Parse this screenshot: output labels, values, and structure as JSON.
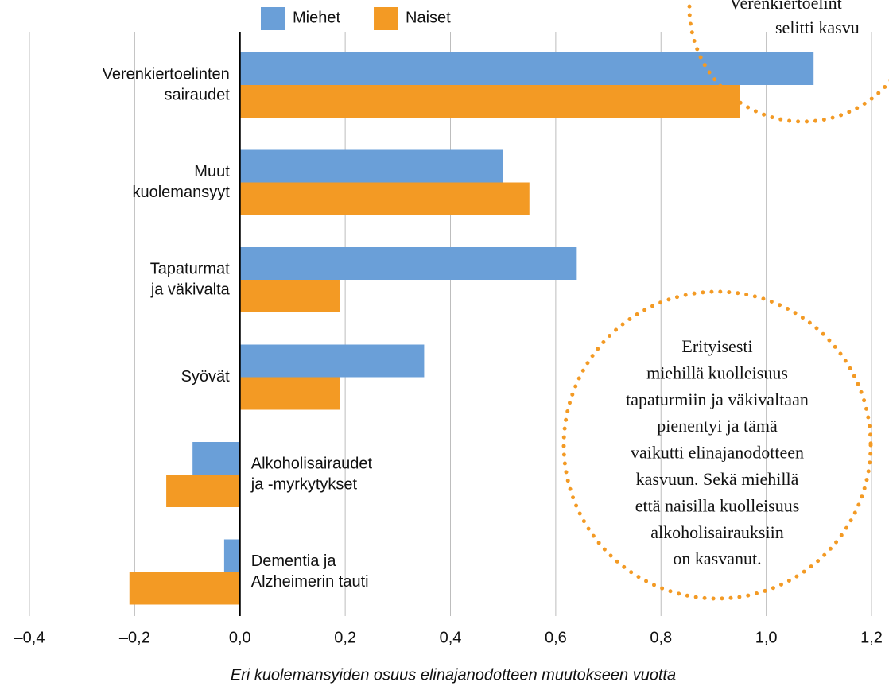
{
  "chart_data": {
    "type": "hbar",
    "categories": [
      [
        "Verenkiertoelinten",
        "sairaudet"
      ],
      [
        "Muut",
        "kuolemansyyt"
      ],
      [
        "Tapaturmat",
        "ja väkivalta"
      ],
      [
        "Syövät"
      ],
      [
        "Alkoholisairaudet",
        "ja -myrkytykset"
      ],
      [
        "Dementia ja",
        "Alzheimerin tauti"
      ]
    ],
    "series": [
      {
        "name": "Miehet",
        "color": "#6a9fd8",
        "values": [
          1.09,
          0.5,
          0.64,
          0.35,
          -0.09,
          -0.03
        ]
      },
      {
        "name": "Naiset",
        "color": "#f39a24",
        "values": [
          0.95,
          0.55,
          0.19,
          0.19,
          -0.14,
          -0.21
        ]
      }
    ],
    "xlim": [
      -0.4,
      1.2
    ],
    "xticks": [
      {
        "value": -0.4,
        "label": "–0,4"
      },
      {
        "value": -0.2,
        "label": "–0,2"
      },
      {
        "value": 0,
        "label": "0,0"
      },
      {
        "value": 0.2,
        "label": "0,2"
      },
      {
        "value": 0.4,
        "label": "0,4"
      },
      {
        "value": 0.6,
        "label": "0,6"
      },
      {
        "value": 0.8,
        "label": "0,8"
      },
      {
        "value": 1.0,
        "label": "1,0"
      },
      {
        "value": 1.2,
        "label": "1,2"
      }
    ],
    "xlabel": "Eri kuolemansyiden osuus elinajanodotteen muutokseen vuotta",
    "grid": true,
    "legend": "top",
    "annotations": [
      {
        "lines": [
          "Verenkiertoelint",
          "selitti kasvu"
        ],
        "color": "#f39a24"
      },
      {
        "lines": [
          "Erityisesti",
          "miehillä kuolleisuus",
          "tapaturmiin ja väkivaltaan",
          "pienentyi ja tämä",
          "vaikutti elinajanodotteen",
          "kasvuun. Sekä miehillä",
          "että naisilla kuolleisuus",
          "alkoholisairauksiin",
          "on kasvanut."
        ],
        "color": "#f39a24"
      }
    ]
  }
}
